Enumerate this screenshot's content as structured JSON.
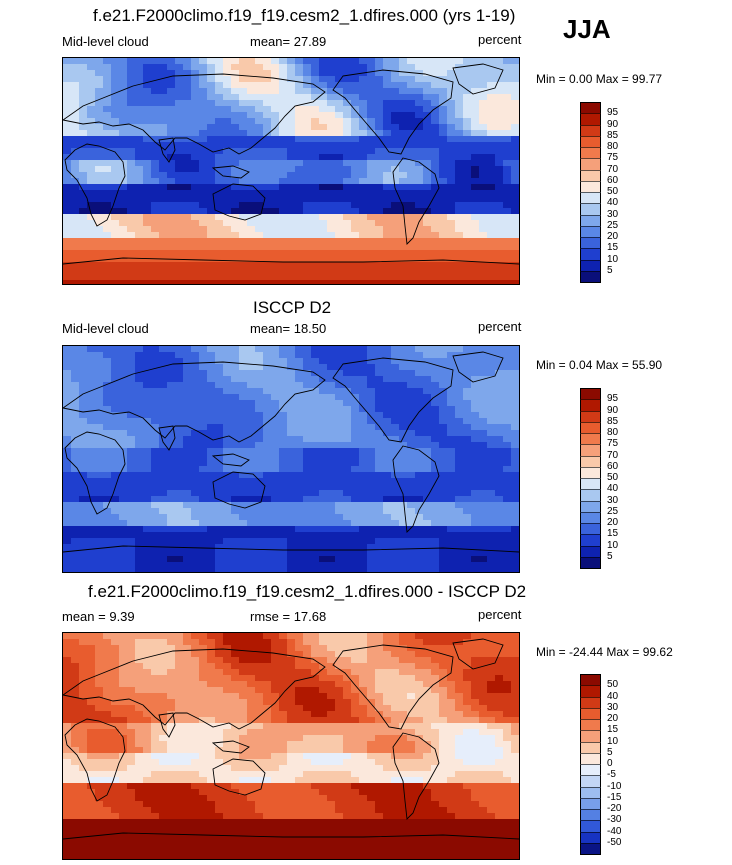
{
  "season": "JJA",
  "panels": [
    {
      "title": "f.e21.F2000climo.f19_f19.cesm2_1.dfires.000 (yrs 1-19)",
      "left_label": "Mid-level cloud",
      "center_label": "mean=  27.89",
      "right_label": "percent",
      "minmax": "Min =   0.00 Max =  99.77",
      "colorbar": {
        "labels": [
          "95",
          "90",
          "85",
          "80",
          "75",
          "70",
          "60",
          "50",
          "40",
          "30",
          "25",
          "20",
          "15",
          "10",
          "5"
        ],
        "colors": [
          "#8b0a00",
          "#b01800",
          "#d13a16",
          "#e85c2e",
          "#f07a4c",
          "#f5a07a",
          "#f9c9aa",
          "#fbe8dc",
          "#d7e6f7",
          "#a9c8f0",
          "#7ea7eb",
          "#5a87e6",
          "#3a63dc",
          "#1f3fcf",
          "#0e22b0",
          "#0a0f7a"
        ]
      },
      "map_style": "model"
    },
    {
      "title": "ISCCP D2",
      "left_label": "Mid-level cloud",
      "center_label": "mean=  18.50",
      "right_label": "percent",
      "minmax": "Min =   0.04 Max =  55.90",
      "colorbar": {
        "labels": [
          "95",
          "90",
          "85",
          "80",
          "75",
          "70",
          "60",
          "50",
          "40",
          "30",
          "25",
          "20",
          "15",
          "10",
          "5"
        ],
        "colors": [
          "#8b0a00",
          "#b01800",
          "#d13a16",
          "#e85c2e",
          "#f07a4c",
          "#f5a07a",
          "#f9c9aa",
          "#fbe8dc",
          "#d7e6f7",
          "#a9c8f0",
          "#7ea7eb",
          "#5a87e6",
          "#3a63dc",
          "#1f3fcf",
          "#0e22b0",
          "#0a0f7a"
        ]
      },
      "map_style": "obs"
    },
    {
      "title": "f.e21.F2000climo.f19_f19.cesm2_1.dfires.000 - ISCCP D2",
      "left_label": "mean =   9.39",
      "center_label": "rmse =  17.68",
      "right_label": "percent",
      "minmax": "Min = -24.44 Max =  99.62",
      "colorbar": {
        "labels": [
          "50",
          "40",
          "30",
          "20",
          "15",
          "10",
          "5",
          "0",
          "-5",
          "-10",
          "-15",
          "-20",
          "-30",
          "-40",
          "-50"
        ],
        "colors": [
          "#8b0a00",
          "#b01800",
          "#d13a16",
          "#e85c2e",
          "#f07a4c",
          "#f5a07a",
          "#f9c9aa",
          "#fbe8dc",
          "#e6eefb",
          "#c3d6f5",
          "#9dbdf0",
          "#789fea",
          "#5480e3",
          "#3158d8",
          "#1733c2",
          "#0a1485"
        ]
      },
      "map_style": "diff"
    }
  ]
}
